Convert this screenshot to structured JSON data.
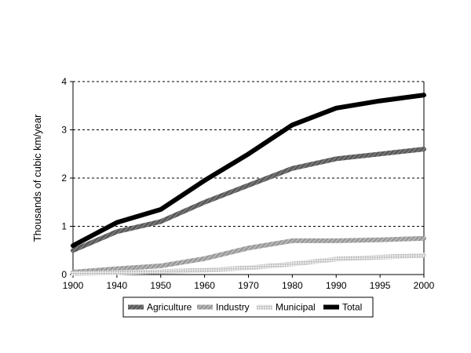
{
  "chart_data": {
    "type": "line",
    "title": "",
    "xlabel": "",
    "ylabel": "Thousands of cubic km/year",
    "categories": [
      "1900",
      "1940",
      "1950",
      "1960",
      "1970",
      "1980",
      "1990",
      "1995",
      "2000"
    ],
    "ylim": [
      0,
      4
    ],
    "yticks": [
      "0",
      "1",
      "2",
      "3",
      "4"
    ],
    "grid": "horizontal dashed at 1, 2, 3",
    "legend_position": "bottom",
    "series": [
      {
        "name": "Agriculture",
        "values": [
          0.5,
          0.89,
          1.1,
          1.5,
          1.85,
          2.2,
          2.4,
          2.5,
          2.6
        ],
        "color": "#6e6e6e",
        "style": "hatched"
      },
      {
        "name": "Industry",
        "values": [
          0.05,
          0.12,
          0.18,
          0.33,
          0.55,
          0.7,
          0.7,
          0.72,
          0.75
        ],
        "color": "#a3a3a3",
        "style": "hatched"
      },
      {
        "name": "Municipal",
        "values": [
          0.02,
          0.04,
          0.06,
          0.09,
          0.14,
          0.22,
          0.32,
          0.36,
          0.4
        ],
        "color": "#cfcfcf",
        "style": "dotted"
      },
      {
        "name": "Total",
        "values": [
          0.6,
          1.08,
          1.35,
          1.95,
          2.5,
          3.1,
          3.45,
          3.6,
          3.72
        ],
        "color": "#000000",
        "style": "solid"
      }
    ]
  }
}
